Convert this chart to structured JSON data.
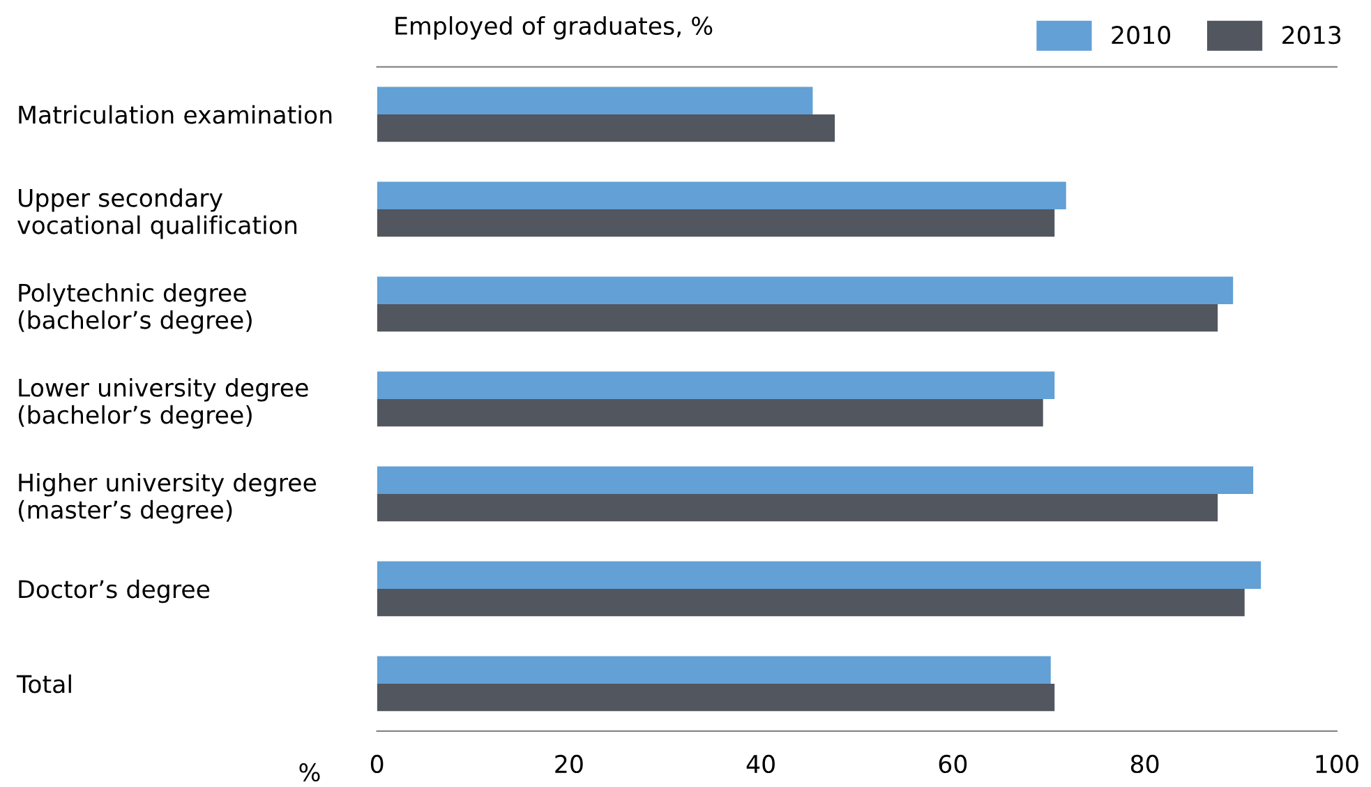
{
  "chart_data": {
    "type": "bar",
    "orientation": "horizontal",
    "title": "Employed of graduates, %",
    "xlabel": "%",
    "categories": [
      "Matriculation examination",
      "Upper secondary\nvocational qualification",
      "Polytechnic degree\n(bachelor’s degree)",
      "Lower university degree\n(bachelor’s degree)",
      "Higher university degree\n(master’s degree)",
      "Doctor’s degree",
      "Total"
    ],
    "series": [
      {
        "name": "2010",
        "color": "#62a0d6",
        "values": [
          45.4,
          71.8,
          89.2,
          70.6,
          91.3,
          92.1,
          70.2
        ]
      },
      {
        "name": "2013",
        "color": "#52565f",
        "values": [
          47.7,
          70.6,
          87.6,
          69.4,
          87.6,
          90.4,
          70.6
        ]
      }
    ],
    "xlim": [
      0,
      100
    ],
    "xticks": [
      0,
      20,
      40,
      60,
      80,
      100
    ],
    "grid": false,
    "legend": "top right"
  }
}
